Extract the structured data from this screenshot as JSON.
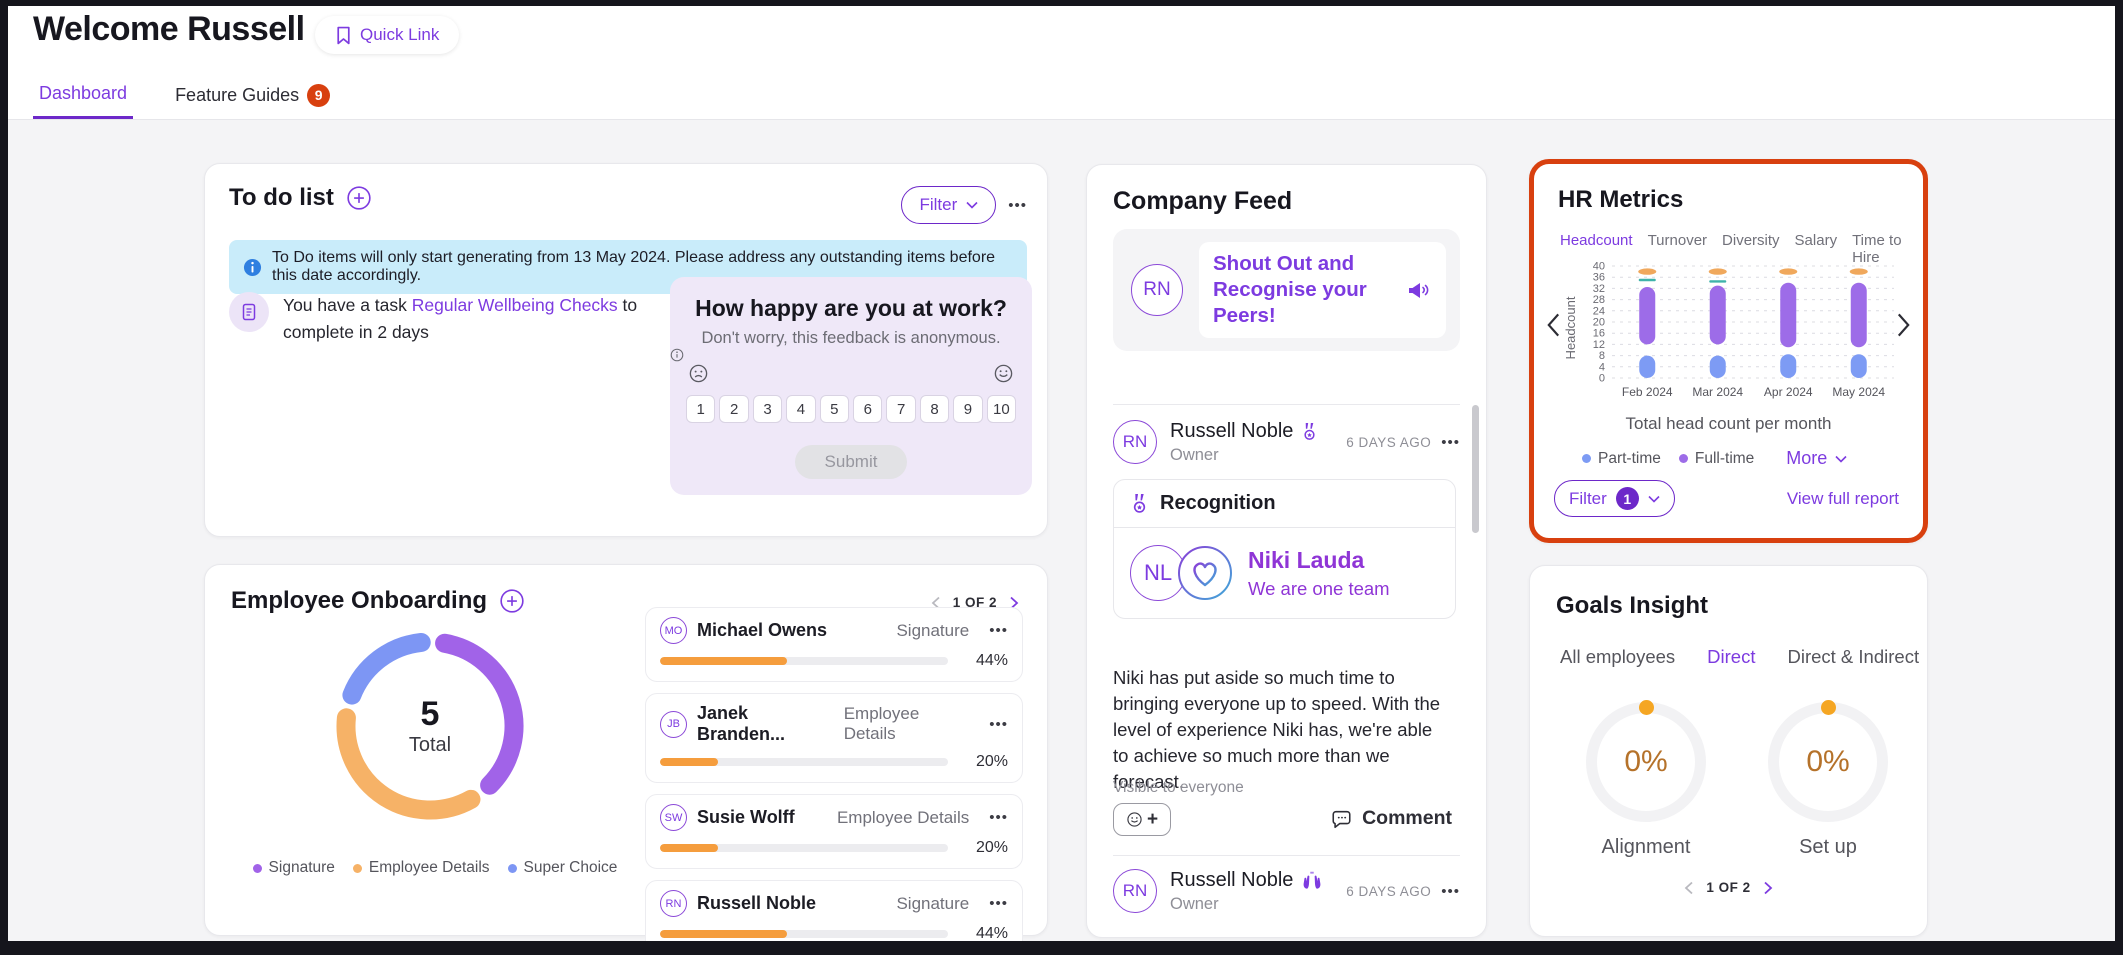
{
  "header": {
    "title": "Welcome Russell",
    "quick_link_label": "Quick Link",
    "tabs": [
      {
        "label": "Dashboard",
        "active": true
      },
      {
        "label": "Feature Guides",
        "active": false,
        "badge": "9"
      }
    ]
  },
  "colors": {
    "accent_purple": "#7d3be0",
    "deep_purple": "#6d28c9",
    "highlight_red": "#d8400f",
    "progress_orange": "#f59d3d",
    "gauge_dot_orange": "#f5a623"
  },
  "todo": {
    "title": "To do list",
    "filter_label": "Filter",
    "banner": "To Do items will only start generating from 13 May 2024. Please address any outstanding items before this date accordingly.",
    "task_prefix": "You have a task",
    "task_link": "Regular Wellbeing Checks",
    "task_suffix": "to complete in 2 days",
    "survey": {
      "title": "How happy are you at work?",
      "subtitle": "Don't worry, this feedback is anonymous.",
      "scale": [
        "1",
        "2",
        "3",
        "4",
        "5",
        "6",
        "7",
        "8",
        "9",
        "10"
      ],
      "submit_label": "Submit"
    }
  },
  "onboarding": {
    "title": "Employee Onboarding",
    "pagination": "1 OF 2",
    "total": "5",
    "total_label": "Total",
    "legend": [
      {
        "label": "Signature",
        "color": "#a163e8"
      },
      {
        "label": "Employee Details",
        "color": "#f6b267"
      },
      {
        "label": "Super Choice",
        "color": "#7d96f4"
      }
    ],
    "employees": [
      {
        "initials": "MO",
        "name": "Michael Owens",
        "stage": "Signature",
        "progress_pct": 44,
        "progress_label": "44%"
      },
      {
        "initials": "JB",
        "name": "Janek Branden...",
        "stage": "Employee Details",
        "progress_pct": 20,
        "progress_label": "20%"
      },
      {
        "initials": "SW",
        "name": "Susie Wolff",
        "stage": "Employee Details",
        "progress_pct": 20,
        "progress_label": "20%"
      },
      {
        "initials": "RN",
        "name": "Russell Noble",
        "stage": "Signature",
        "progress_pct": 44,
        "progress_label": "44%"
      }
    ]
  },
  "feed": {
    "title": "Company Feed",
    "shoutout_avatar": "RN",
    "shoutout_text": "Shout Out and Recognise your Peers!",
    "posts": [
      {
        "avatar": "RN",
        "author": "Russell Noble",
        "role": "Owner",
        "time": "6 DAYS AGO",
        "recognition_title": "Recognition",
        "recognition_initials": "NL",
        "recognition_name": "Niki Lauda",
        "recognition_caption": "We are one team",
        "body": "Niki has put aside so much time to bringing everyone up to speed. With the level of experience Niki has, we're able to achieve so much more than we forecast.",
        "visibility": "Visible to everyone",
        "comment_label": "Comment"
      },
      {
        "avatar": "RN",
        "author": "Russell Noble",
        "role": "Owner",
        "time": "6 DAYS AGO"
      }
    ]
  },
  "hr_metrics": {
    "title": "HR Metrics",
    "tabs": [
      {
        "label": "Headcount",
        "active": true
      },
      {
        "label": "Turnover",
        "active": false
      },
      {
        "label": "Diversity",
        "active": false
      },
      {
        "label": "Salary",
        "active": false
      },
      {
        "label": "Time to Hire",
        "active": false
      }
    ],
    "caption": "Total head count per month",
    "legend": [
      {
        "label": "Part-time",
        "color": "#7d9bf4"
      },
      {
        "label": "Full-time",
        "color": "#9d6ce8"
      }
    ],
    "more_label": "More",
    "filter_label": "Filter",
    "filter_count": "1",
    "report_link": "View full report",
    "highlight_border_color": "#d8400f"
  },
  "goals": {
    "title": "Goals Insight",
    "tabs": [
      {
        "label": "All employees",
        "active": false
      },
      {
        "label": "Direct",
        "active": true
      },
      {
        "label": "Direct & Indirect",
        "active": false
      }
    ],
    "gauges": [
      {
        "value": "0%",
        "label": "Alignment"
      },
      {
        "value": "0%",
        "label": "Set up"
      }
    ],
    "pagination": "1 OF 2"
  },
  "chart_data": [
    {
      "id": "onboarding-status-donut",
      "type": "pie",
      "title": "Employee Onboarding status",
      "total": 5,
      "center_label": "Total",
      "slices": [
        {
          "label": "Signature",
          "value": 2,
          "color": "#a163e8"
        },
        {
          "label": "Employee Details",
          "value": 2,
          "color": "#f6b267"
        },
        {
          "label": "Super Choice",
          "value": 1,
          "color": "#7d96f4"
        }
      ]
    },
    {
      "id": "headcount-by-month",
      "type": "bar",
      "title": "Total head count per month",
      "ylabel": "Headcount",
      "ylim": [
        0,
        40
      ],
      "yticks": [
        0,
        4,
        8,
        12,
        16,
        20,
        24,
        28,
        32,
        36,
        40
      ],
      "categories": [
        "Feb 2024",
        "Mar 2024",
        "Apr 2024",
        "May 2024"
      ],
      "grid": "dashed-horizontal",
      "legend_position": "bottom",
      "series": [
        {
          "name": "Part-time",
          "style": "rounded-bar",
          "color": "#7d9bf4",
          "ranges": [
            [
              0,
              8
            ],
            [
              0,
              8
            ],
            [
              0,
              8.5
            ],
            [
              0,
              8.5
            ]
          ]
        },
        {
          "name": "Full-time",
          "style": "rounded-bar",
          "color": "#9d6ce8",
          "ranges": [
            [
              12,
              32.5
            ],
            [
              12,
              33
            ],
            [
              11,
              34
            ],
            [
              11,
              34
            ]
          ]
        },
        {
          "name": "unlabeled-orange-marker",
          "style": "ellipse-marker",
          "color": "#f0a85c",
          "values": [
            38,
            38,
            38,
            38
          ]
        },
        {
          "name": "unlabeled-teal-marker",
          "style": "dash-marker",
          "color": "#3fb3aa",
          "values": [
            35,
            34.5,
            null,
            null
          ]
        }
      ]
    },
    {
      "id": "goals-gauges",
      "type": "gauge",
      "gauges": [
        {
          "label": "Alignment",
          "value_pct": 0
        },
        {
          "label": "Set up",
          "value_pct": 0
        }
      ],
      "dot_color": "#f5a623",
      "value_color": "#b5722a"
    }
  ]
}
